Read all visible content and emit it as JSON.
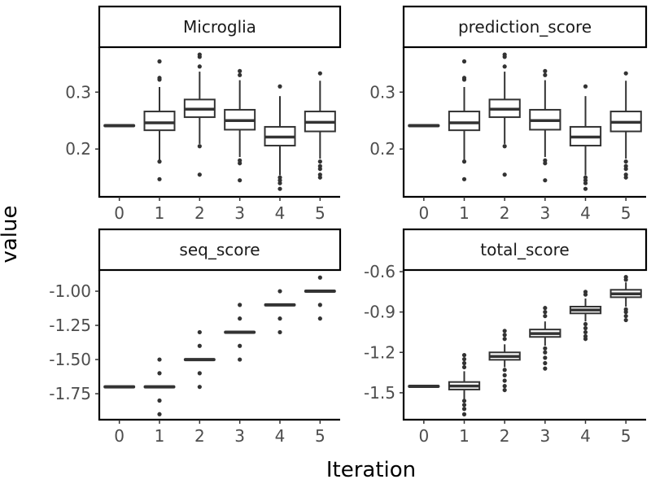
{
  "chart_data": {
    "type": "box",
    "xlabel": "Iteration",
    "ylabel": "value",
    "categories": [
      "0",
      "1",
      "2",
      "3",
      "4",
      "5"
    ],
    "panels": [
      {
        "title": "Microglia",
        "ylim": [
          0.116,
          0.379
        ],
        "yticks": [
          0.2,
          0.3
        ],
        "ytick_labels": [
          "0.2",
          "0.3"
        ],
        "boxes": [
          {
            "q1": 0.241,
            "median": 0.241,
            "q3": 0.241,
            "lo": 0.241,
            "hi": 0.241,
            "outliers": []
          },
          {
            "q1": 0.233,
            "median": 0.246,
            "q3": 0.266,
            "lo": 0.18,
            "hi": 0.309,
            "outliers": [
              0.322,
              0.325,
              0.354,
              0.178,
              0.147
            ]
          },
          {
            "q1": 0.256,
            "median": 0.27,
            "q3": 0.287,
            "lo": 0.209,
            "hi": 0.336,
            "outliers": [
              0.345,
              0.362,
              0.366,
              0.205,
              0.155
            ]
          },
          {
            "q1": 0.234,
            "median": 0.25,
            "q3": 0.269,
            "lo": 0.186,
            "hi": 0.321,
            "outliers": [
              0.33,
              0.337,
              0.18,
              0.175,
              0.145
            ]
          },
          {
            "q1": 0.206,
            "median": 0.221,
            "q3": 0.239,
            "lo": 0.154,
            "hi": 0.293,
            "outliers": [
              0.31,
              0.15,
              0.145,
              0.14,
              0.13
            ]
          },
          {
            "q1": 0.231,
            "median": 0.247,
            "q3": 0.266,
            "lo": 0.183,
            "hi": 0.32,
            "outliers": [
              0.333,
              0.178,
              0.17,
              0.165,
              0.155,
              0.15
            ]
          }
        ]
      },
      {
        "title": "prediction_score",
        "ylim": [
          0.116,
          0.379
        ],
        "yticks": [
          0.2,
          0.3
        ],
        "ytick_labels": [
          "0.2",
          "0.3"
        ],
        "boxes": [
          {
            "q1": 0.241,
            "median": 0.241,
            "q3": 0.241,
            "lo": 0.241,
            "hi": 0.241,
            "outliers": []
          },
          {
            "q1": 0.233,
            "median": 0.246,
            "q3": 0.266,
            "lo": 0.18,
            "hi": 0.309,
            "outliers": [
              0.322,
              0.325,
              0.354,
              0.178,
              0.147
            ]
          },
          {
            "q1": 0.256,
            "median": 0.27,
            "q3": 0.287,
            "lo": 0.209,
            "hi": 0.336,
            "outliers": [
              0.345,
              0.362,
              0.366,
              0.205,
              0.155
            ]
          },
          {
            "q1": 0.234,
            "median": 0.25,
            "q3": 0.269,
            "lo": 0.186,
            "hi": 0.321,
            "outliers": [
              0.33,
              0.337,
              0.18,
              0.175,
              0.145
            ]
          },
          {
            "q1": 0.206,
            "median": 0.221,
            "q3": 0.239,
            "lo": 0.154,
            "hi": 0.293,
            "outliers": [
              0.31,
              0.15,
              0.145,
              0.14,
              0.13
            ]
          },
          {
            "q1": 0.231,
            "median": 0.247,
            "q3": 0.266,
            "lo": 0.183,
            "hi": 0.32,
            "outliers": [
              0.333,
              0.178,
              0.17,
              0.165,
              0.155,
              0.15
            ]
          }
        ]
      },
      {
        "title": "seq_score",
        "ylim": [
          -1.94,
          -0.845
        ],
        "yticks": [
          -1.75,
          -1.5,
          -1.25,
          -1.0
        ],
        "ytick_labels": [
          "-1.75",
          "-1.50",
          "-1.25",
          "-1.00"
        ],
        "boxes": [
          {
            "q1": -1.7,
            "median": -1.7,
            "q3": -1.7,
            "lo": -1.7,
            "hi": -1.7,
            "outliers": []
          },
          {
            "q1": -1.7,
            "median": -1.7,
            "q3": -1.7,
            "lo": -1.7,
            "hi": -1.7,
            "outliers": [
              -1.5,
              -1.6,
              -1.8,
              -1.9
            ]
          },
          {
            "q1": -1.5,
            "median": -1.5,
            "q3": -1.5,
            "lo": -1.5,
            "hi": -1.5,
            "outliers": [
              -1.3,
              -1.4,
              -1.6,
              -1.7
            ]
          },
          {
            "q1": -1.3,
            "median": -1.3,
            "q3": -1.3,
            "lo": -1.3,
            "hi": -1.3,
            "outliers": [
              -1.1,
              -1.2,
              -1.4,
              -1.5
            ]
          },
          {
            "q1": -1.1,
            "median": -1.1,
            "q3": -1.1,
            "lo": -1.1,
            "hi": -1.1,
            "outliers": [
              -1.0,
              -1.2,
              -1.3
            ]
          },
          {
            "q1": -1.0,
            "median": -1.0,
            "q3": -1.0,
            "lo": -1.0,
            "hi": -1.0,
            "outliers": [
              -0.9,
              -1.1,
              -1.2
            ]
          }
        ]
      },
      {
        "title": "total_score",
        "ylim": [
          -1.7,
          -0.588
        ],
        "yticks": [
          -1.5,
          -1.2,
          -0.9,
          -0.6
        ],
        "ytick_labels": [
          "-1.5",
          "-1.2",
          "-0.9",
          "-0.6"
        ],
        "boxes": [
          {
            "q1": -1.452,
            "median": -1.452,
            "q3": -1.452,
            "lo": -1.452,
            "hi": -1.452,
            "outliers": []
          },
          {
            "q1": -1.476,
            "median": -1.45,
            "q3": -1.42,
            "lo": -1.55,
            "hi": -1.34,
            "outliers": [
              -1.22,
              -1.25,
              -1.28,
              -1.31,
              -1.56,
              -1.59,
              -1.62,
              -1.66
            ]
          },
          {
            "q1": -1.255,
            "median": -1.23,
            "q3": -1.2,
            "lo": -1.31,
            "hi": -1.14,
            "outliers": [
              -1.04,
              -1.07,
              -1.1,
              -1.33,
              -1.37,
              -1.41,
              -1.45,
              -1.48
            ]
          },
          {
            "q1": -1.085,
            "median": -1.06,
            "q3": -1.03,
            "lo": -1.15,
            "hi": -0.97,
            "outliers": [
              -0.87,
              -0.9,
              -0.93,
              -1.17,
              -1.2,
              -1.24,
              -1.28,
              -1.32
            ]
          },
          {
            "q1": -0.91,
            "median": -0.885,
            "q3": -0.86,
            "lo": -0.97,
            "hi": -0.8,
            "outliers": [
              -0.75,
              -0.77,
              -0.99,
              -1.02,
              -1.05,
              -1.08,
              -1.1
            ]
          },
          {
            "q1": -0.79,
            "median": -0.765,
            "q3": -0.735,
            "lo": -0.86,
            "hi": -0.68,
            "outliers": [
              -0.64,
              -0.66,
              -0.88,
              -0.9,
              -0.93,
              -0.96
            ]
          }
        ]
      }
    ]
  }
}
